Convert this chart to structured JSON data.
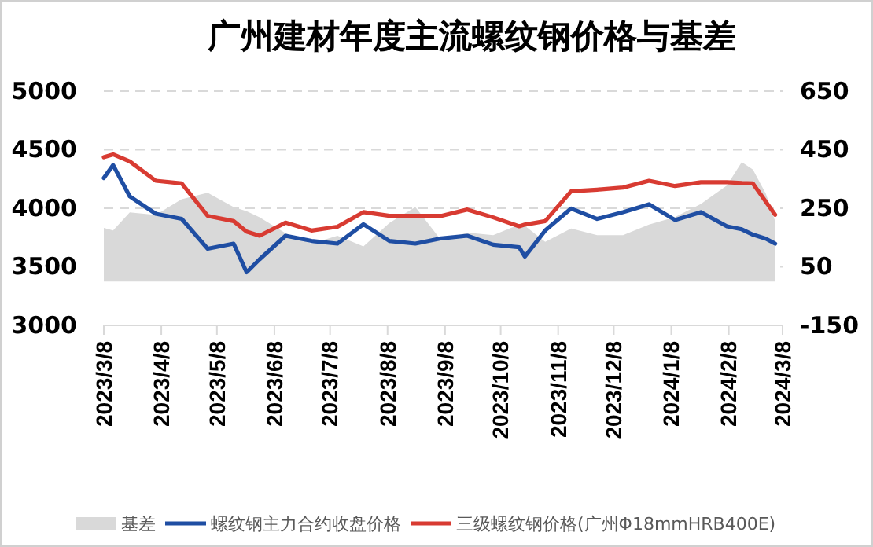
{
  "chart_data": {
    "type": "line",
    "title": "广州建材年度主流螺纹钢价格与基差",
    "x": [
      "2023-03-08",
      "2023-03-13",
      "2023-03-22",
      "2023-04-05",
      "2023-04-19",
      "2023-05-03",
      "2023-05-17",
      "2023-05-24",
      "2023-05-31",
      "2023-06-14",
      "2023-06-28",
      "2023-07-12",
      "2023-07-26",
      "2023-08-09",
      "2023-08-23",
      "2023-09-06",
      "2023-09-20",
      "2023-10-04",
      "2023-10-18",
      "2023-10-21",
      "2023-11-01",
      "2023-11-15",
      "2023-11-29",
      "2023-12-13",
      "2023-12-27",
      "2024-01-10",
      "2024-01-24",
      "2024-02-07",
      "2024-02-15",
      "2024-02-21",
      "2024-02-28",
      "2024-03-04"
    ],
    "series": [
      {
        "name": "基差",
        "type": "area",
        "axis": "y2",
        "color": "#d9d9d9",
        "values": [
          183,
          174,
          236,
          227,
          281,
          303,
          254,
          240,
          219,
          165,
          129,
          156,
          120,
          200,
          254,
          140,
          167,
          158,
          194,
          190,
          135,
          181,
          158,
          158,
          194,
          220,
          265,
          328,
          408,
          382,
          300,
          206
        ]
      },
      {
        "name": "螺纹钢主力合约收盘价格",
        "color": "#1f4ea3",
        "values": [
          4258,
          4369,
          4101,
          3953,
          3909,
          3654,
          3698,
          3453,
          3564,
          3765,
          3721,
          3698,
          3863,
          3721,
          3698,
          3743,
          3765,
          3689,
          3667,
          3587,
          3810,
          3998,
          3909,
          3967,
          4034,
          3900,
          3967,
          3846,
          3820,
          3775,
          3740,
          3698
        ]
      },
      {
        "name": "三级螺纹钢价格(广州Φ18mmHRB400E)",
        "color": "#d83b32",
        "values": [
          4436,
          4460,
          4400,
          4235,
          4212,
          3935,
          3890,
          3800,
          3765,
          3877,
          3810,
          3842,
          3967,
          3935,
          3935,
          3935,
          3989,
          3922,
          3846,
          3860,
          3890,
          4145,
          4159,
          4177,
          4235,
          4190,
          4222,
          4222,
          4215,
          4212,
          4056,
          3944
        ]
      }
    ],
    "xlim": [
      "2023-03-08",
      "2024-03-08"
    ],
    "xticks": [
      {
        "value": "2023-03-08",
        "label": "2023/3/8"
      },
      {
        "value": "2023-04-08",
        "label": "2023/4/8"
      },
      {
        "value": "2023-05-08",
        "label": "2023/5/8"
      },
      {
        "value": "2023-06-08",
        "label": "2023/6/8"
      },
      {
        "value": "2023-07-08",
        "label": "2023/7/8"
      },
      {
        "value": "2023-08-08",
        "label": "2023/8/8"
      },
      {
        "value": "2023-09-08",
        "label": "2023/9/8"
      },
      {
        "value": "2023-10-08",
        "label": "2023/10/8"
      },
      {
        "value": "2023-11-08",
        "label": "2023/11/8"
      },
      {
        "value": "2023-12-08",
        "label": "2023/12/8"
      },
      {
        "value": "2024-01-08",
        "label": "2024/1/8"
      },
      {
        "value": "2024-02-08",
        "label": "2024/2/8"
      },
      {
        "value": "2024-03-08",
        "label": "2024/3/8"
      }
    ],
    "ylim": [
      3000,
      5000
    ],
    "yticks": [
      3000,
      3500,
      4000,
      4500,
      5000
    ],
    "y2lim": [
      -150,
      650
    ],
    "y2ticks": [
      -150,
      50,
      250,
      450,
      650
    ],
    "grid": "y",
    "legend": "bottom"
  }
}
